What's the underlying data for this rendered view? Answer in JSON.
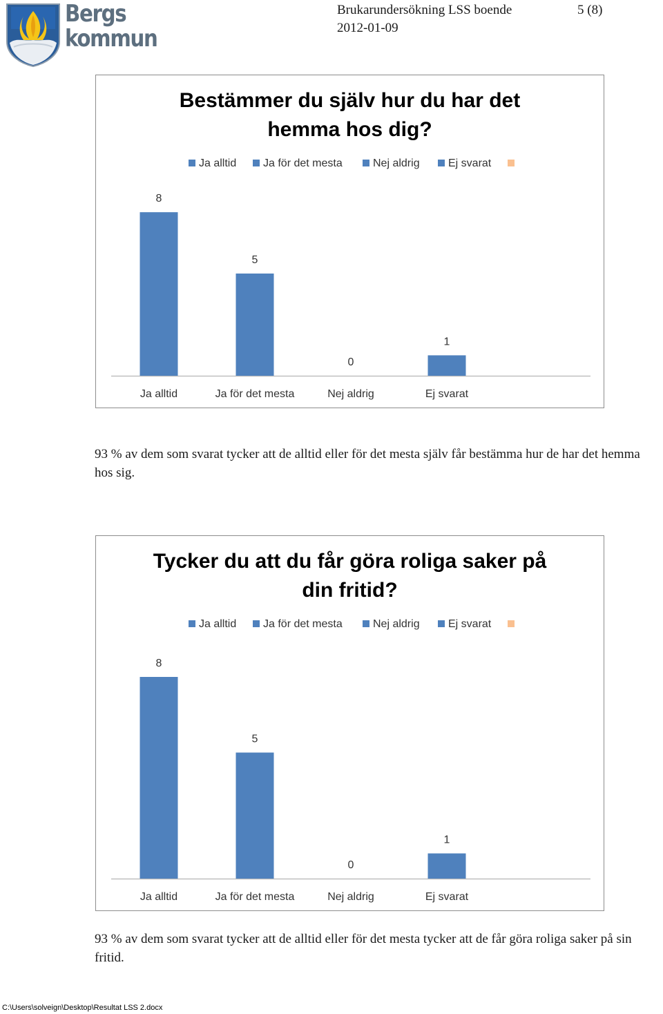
{
  "header": {
    "logo_text_1": "Bergs",
    "logo_text_2": "kommun",
    "title": "Brukarundersökning LSS boende",
    "page": "5 (8)",
    "date": "2012-01-09"
  },
  "colors": {
    "bar": "#4f81bd",
    "legend_extra": "#fac090",
    "axis": "#bfbfbf"
  },
  "legend": [
    "Ja alltid",
    "Ja för det mesta",
    "Nej aldrig",
    "Ej svarat",
    ""
  ],
  "chart_data": [
    {
      "type": "bar",
      "title_line1": "Bestämmer du själv hur du har det",
      "title_line2": "hemma hos dig?",
      "categories": [
        "Ja alltid",
        "Ja för det mesta",
        "Nej aldrig",
        "Ej svarat"
      ],
      "values": [
        8,
        5,
        0,
        1
      ],
      "value_labels": [
        "8",
        "5",
        "0",
        "1"
      ]
    },
    {
      "type": "bar",
      "title_line1": "Tycker du att du får göra roliga saker på",
      "title_line2": "din fritid?",
      "categories": [
        "Ja alltid",
        "Ja för det mesta",
        "Nej aldrig",
        "Ej svarat"
      ],
      "values": [
        8,
        5,
        0,
        1
      ],
      "value_labels": [
        "8",
        "5",
        "0",
        "1"
      ]
    }
  ],
  "text1": "93 % av dem som svarat tycker att de alltid eller för det mesta själv får bestämma hur de har det hemma hos sig.",
  "text2": "93 % av dem som svarat tycker att de alltid eller för det mesta tycker att de får göra roliga saker på sin fritid.",
  "footer": "C:\\Users\\solveign\\Desktop\\Resultat LSS 2.docx"
}
